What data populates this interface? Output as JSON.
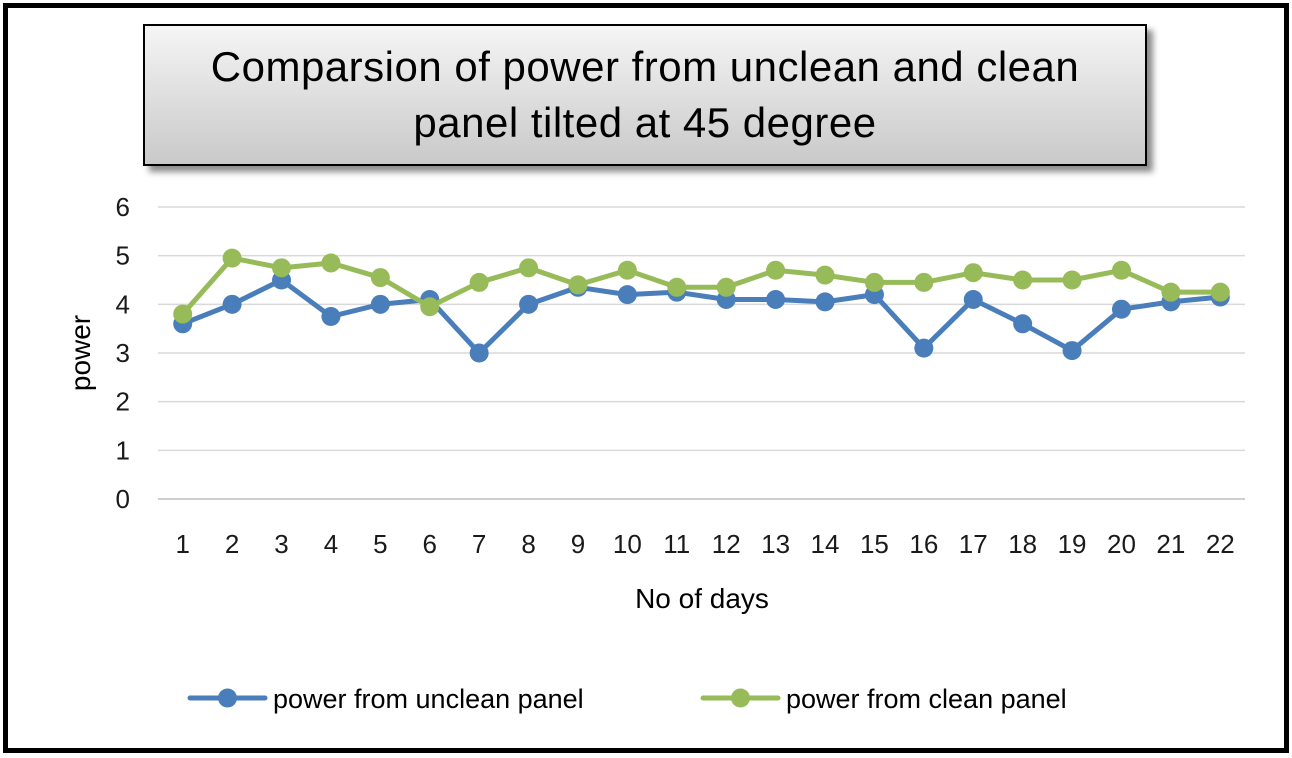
{
  "chart_data": {
    "type": "line",
    "title": "Comparsion of power from unclean and clean panel tilted at 45 degree",
    "xlabel": "No of days",
    "ylabel": "power",
    "ylim": [
      0,
      6
    ],
    "yticks": [
      0,
      1,
      2,
      3,
      4,
      5,
      6
    ],
    "grid": true,
    "legend_position": "bottom",
    "categories": [
      "1",
      "2",
      "3",
      "4",
      "5",
      "6",
      "7",
      "8",
      "9",
      "10",
      "11",
      "12",
      "13",
      "14",
      "15",
      "16",
      "17",
      "18",
      "19",
      "20",
      "21",
      "22"
    ],
    "series": [
      {
        "name": "power from unclean panel",
        "color": "#4a7ebb",
        "values": [
          3.6,
          4.0,
          4.5,
          3.75,
          4.0,
          4.1,
          3.0,
          4.0,
          4.35,
          4.2,
          4.25,
          4.1,
          4.1,
          4.05,
          4.2,
          3.1,
          4.1,
          3.6,
          3.05,
          3.9,
          4.05,
          4.15
        ]
      },
      {
        "name": "power from clean panel",
        "color": "#98bb59",
        "values": [
          3.8,
          4.95,
          4.75,
          4.85,
          4.55,
          3.95,
          4.45,
          4.75,
          4.4,
          4.7,
          4.35,
          4.35,
          4.7,
          4.6,
          4.45,
          4.45,
          4.65,
          4.5,
          4.5,
          4.7,
          4.25,
          4.25
        ]
      }
    ]
  }
}
